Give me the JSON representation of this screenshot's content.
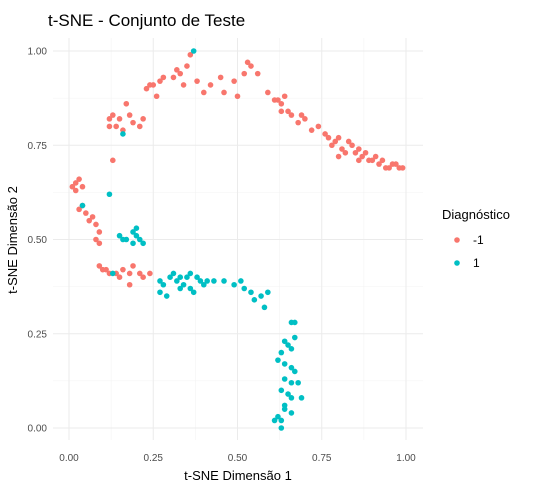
{
  "chart_data": {
    "type": "scatter",
    "title": "t-SNE - Conjunto de Teste",
    "xlabel": "t-SNE Dimensão 1",
    "ylabel": "t-SNE Dimensão 2",
    "xlim": [
      0,
      1
    ],
    "ylim": [
      0,
      1
    ],
    "x_ticks": [
      "0.00",
      "0.25",
      "0.50",
      "0.75",
      "1.00"
    ],
    "y_ticks": [
      "0.00",
      "0.25",
      "0.50",
      "0.75",
      "1.00"
    ],
    "grid": true,
    "legend_position": "right",
    "legend_title": "Diagnóstico",
    "series": [
      {
        "name": "-1",
        "color": "#F8766D",
        "points": [
          [
            0.01,
            0.64
          ],
          [
            0.02,
            0.65
          ],
          [
            0.03,
            0.66
          ],
          [
            0.04,
            0.64
          ],
          [
            0.02,
            0.63
          ],
          [
            0.03,
            0.58
          ],
          [
            0.04,
            0.59
          ],
          [
            0.05,
            0.57
          ],
          [
            0.06,
            0.55
          ],
          [
            0.07,
            0.56
          ],
          [
            0.08,
            0.54
          ],
          [
            0.09,
            0.52
          ],
          [
            0.08,
            0.5
          ],
          [
            0.09,
            0.49
          ],
          [
            0.09,
            0.43
          ],
          [
            0.1,
            0.42
          ],
          [
            0.11,
            0.42
          ],
          [
            0.12,
            0.41
          ],
          [
            0.14,
            0.41
          ],
          [
            0.15,
            0.4
          ],
          [
            0.16,
            0.42
          ],
          [
            0.18,
            0.41
          ],
          [
            0.19,
            0.43
          ],
          [
            0.21,
            0.41
          ],
          [
            0.22,
            0.4
          ],
          [
            0.24,
            0.41
          ],
          [
            0.18,
            0.38
          ],
          [
            0.13,
            0.71
          ],
          [
            0.12,
            0.8
          ],
          [
            0.12,
            0.82
          ],
          [
            0.13,
            0.83
          ],
          [
            0.14,
            0.8
          ],
          [
            0.15,
            0.82
          ],
          [
            0.16,
            0.79
          ],
          [
            0.17,
            0.86
          ],
          [
            0.18,
            0.83
          ],
          [
            0.19,
            0.81
          ],
          [
            0.21,
            0.8
          ],
          [
            0.22,
            0.82
          ],
          [
            0.23,
            0.9
          ],
          [
            0.24,
            0.91
          ],
          [
            0.25,
            0.91
          ],
          [
            0.26,
            0.88
          ],
          [
            0.27,
            0.92
          ],
          [
            0.28,
            0.93
          ],
          [
            0.31,
            0.93
          ],
          [
            0.32,
            0.95
          ],
          [
            0.33,
            0.94
          ],
          [
            0.34,
            0.91
          ],
          [
            0.35,
            0.96
          ],
          [
            0.36,
            0.99
          ],
          [
            0.38,
            0.92
          ],
          [
            0.4,
            0.89
          ],
          [
            0.42,
            0.91
          ],
          [
            0.45,
            0.93
          ],
          [
            0.46,
            0.89
          ],
          [
            0.49,
            0.92
          ],
          [
            0.5,
            0.88
          ],
          [
            0.52,
            0.94
          ],
          [
            0.53,
            0.97
          ],
          [
            0.54,
            0.96
          ],
          [
            0.56,
            0.94
          ],
          [
            0.59,
            0.89
          ],
          [
            0.61,
            0.87
          ],
          [
            0.62,
            0.87
          ],
          [
            0.63,
            0.86
          ],
          [
            0.63,
            0.84
          ],
          [
            0.65,
            0.84
          ],
          [
            0.64,
            0.88
          ],
          [
            0.66,
            0.83
          ],
          [
            0.68,
            0.81
          ],
          [
            0.69,
            0.83
          ],
          [
            0.7,
            0.82
          ],
          [
            0.72,
            0.79
          ],
          [
            0.74,
            0.8
          ],
          [
            0.76,
            0.78
          ],
          [
            0.77,
            0.77
          ],
          [
            0.79,
            0.76
          ],
          [
            0.8,
            0.77
          ],
          [
            0.81,
            0.74
          ],
          [
            0.82,
            0.73
          ],
          [
            0.83,
            0.76
          ],
          [
            0.84,
            0.75
          ],
          [
            0.85,
            0.73
          ],
          [
            0.86,
            0.74
          ],
          [
            0.87,
            0.72
          ],
          [
            0.88,
            0.73
          ],
          [
            0.89,
            0.71
          ],
          [
            0.9,
            0.71
          ],
          [
            0.91,
            0.72
          ],
          [
            0.92,
            0.7
          ],
          [
            0.93,
            0.71
          ],
          [
            0.95,
            0.69
          ],
          [
            0.96,
            0.7
          ],
          [
            0.97,
            0.7
          ],
          [
            0.98,
            0.69
          ],
          [
            0.99,
            0.69
          ],
          [
            0.8,
            0.72
          ],
          [
            0.78,
            0.75
          ],
          [
            0.86,
            0.71
          ],
          [
            0.94,
            0.69
          ]
        ]
      },
      {
        "name": "1",
        "color": "#00BFC4",
        "points": [
          [
            0.16,
            0.78
          ],
          [
            0.37,
            1.0
          ],
          [
            0.12,
            0.62
          ],
          [
            0.04,
            0.59
          ],
          [
            0.15,
            0.51
          ],
          [
            0.16,
            0.5
          ],
          [
            0.17,
            0.5
          ],
          [
            0.19,
            0.49
          ],
          [
            0.19,
            0.52
          ],
          [
            0.2,
            0.51
          ],
          [
            0.2,
            0.53
          ],
          [
            0.21,
            0.5
          ],
          [
            0.22,
            0.49
          ],
          [
            0.13,
            0.41
          ],
          [
            0.27,
            0.39
          ],
          [
            0.28,
            0.38
          ],
          [
            0.3,
            0.4
          ],
          [
            0.31,
            0.41
          ],
          [
            0.32,
            0.39
          ],
          [
            0.33,
            0.4
          ],
          [
            0.34,
            0.38
          ],
          [
            0.35,
            0.4
          ],
          [
            0.36,
            0.41
          ],
          [
            0.38,
            0.4
          ],
          [
            0.39,
            0.39
          ],
          [
            0.4,
            0.38
          ],
          [
            0.41,
            0.39
          ],
          [
            0.43,
            0.39
          ],
          [
            0.27,
            0.36
          ],
          [
            0.29,
            0.35
          ],
          [
            0.33,
            0.37
          ],
          [
            0.36,
            0.37
          ],
          [
            0.37,
            0.36
          ],
          [
            0.46,
            0.39
          ],
          [
            0.49,
            0.38
          ],
          [
            0.51,
            0.39
          ],
          [
            0.52,
            0.37
          ],
          [
            0.54,
            0.36
          ],
          [
            0.55,
            0.34
          ],
          [
            0.57,
            0.35
          ],
          [
            0.58,
            0.32
          ],
          [
            0.59,
            0.36
          ],
          [
            0.66,
            0.28
          ],
          [
            0.67,
            0.28
          ],
          [
            0.67,
            0.24
          ],
          [
            0.64,
            0.23
          ],
          [
            0.65,
            0.22
          ],
          [
            0.66,
            0.21
          ],
          [
            0.63,
            0.2
          ],
          [
            0.62,
            0.18
          ],
          [
            0.64,
            0.17
          ],
          [
            0.66,
            0.16
          ],
          [
            0.67,
            0.15
          ],
          [
            0.64,
            0.13
          ],
          [
            0.66,
            0.12
          ],
          [
            0.68,
            0.12
          ],
          [
            0.63,
            0.1
          ],
          [
            0.65,
            0.09
          ],
          [
            0.66,
            0.08
          ],
          [
            0.69,
            0.08
          ],
          [
            0.64,
            0.06
          ],
          [
            0.66,
            0.04
          ],
          [
            0.62,
            0.03
          ],
          [
            0.63,
            0.02
          ],
          [
            0.64,
            0.05
          ],
          [
            0.61,
            0.02
          ],
          [
            0.63,
            0.0
          ]
        ]
      }
    ]
  }
}
